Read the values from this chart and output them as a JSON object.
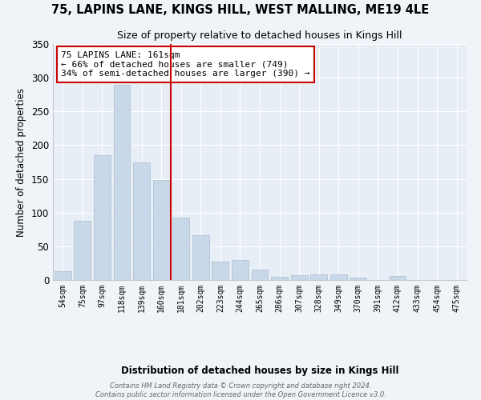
{
  "title": "75, LAPINS LANE, KINGS HILL, WEST MALLING, ME19 4LE",
  "subtitle": "Size of property relative to detached houses in Kings Hill",
  "xlabel": "Distribution of detached houses by size in Kings Hill",
  "ylabel": "Number of detached properties",
  "bar_color": "#c8d8e8",
  "bar_edge_color": "#b0c4d8",
  "background_color": "#e8eef5",
  "grid_color": "#ffffff",
  "categories": [
    "54sqm",
    "75sqm",
    "97sqm",
    "118sqm",
    "139sqm",
    "160sqm",
    "181sqm",
    "202sqm",
    "223sqm",
    "244sqm",
    "265sqm",
    "286sqm",
    "307sqm",
    "328sqm",
    "349sqm",
    "370sqm",
    "391sqm",
    "412sqm",
    "433sqm",
    "454sqm",
    "475sqm"
  ],
  "values": [
    13,
    88,
    185,
    290,
    175,
    148,
    92,
    67,
    27,
    30,
    15,
    5,
    7,
    8,
    8,
    3,
    0,
    6,
    0,
    0,
    0
  ],
  "vline_x": 5.5,
  "vline_color": "#cc0000",
  "annotation_text": "75 LAPINS LANE: 161sqm\n← 66% of detached houses are smaller (749)\n34% of semi-detached houses are larger (390) →",
  "footer_text": "Contains HM Land Registry data © Crown copyright and database right 2024.\nContains public sector information licensed under the Open Government Licence v3.0.",
  "ylim": [
    0,
    350
  ],
  "yticks": [
    0,
    50,
    100,
    150,
    200,
    250,
    300,
    350
  ],
  "fig_bg": "#f0f4f8"
}
